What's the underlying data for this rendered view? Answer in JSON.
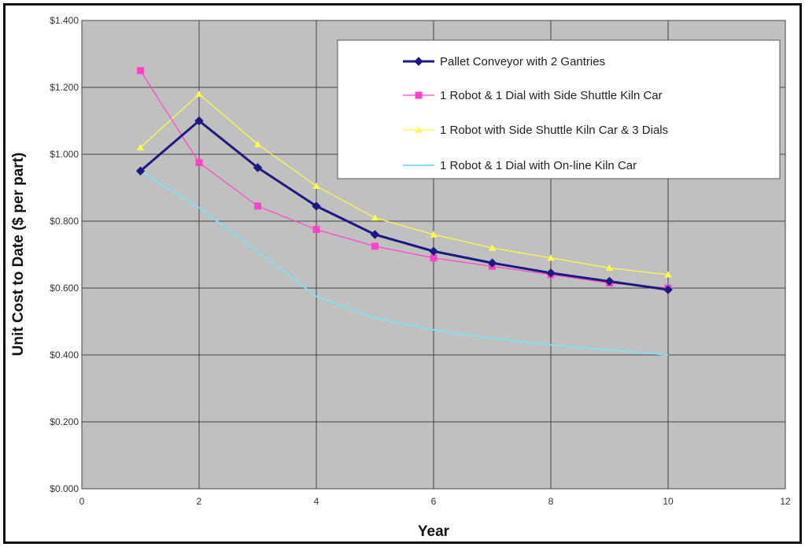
{
  "chart_data": {
    "type": "line",
    "title": "",
    "xlabel": "Year",
    "ylabel": "Unit Cost to Date ($ per part)",
    "xlim": [
      0,
      12
    ],
    "ylim": [
      0,
      1.4
    ],
    "x_ticks": [
      0,
      2,
      4,
      6,
      8,
      10,
      12
    ],
    "x_tick_labels": [
      "0",
      "2",
      "4",
      "6",
      "8",
      "10",
      "12"
    ],
    "y_ticks": [
      0,
      0.2,
      0.4,
      0.6,
      0.8,
      1.0,
      1.2,
      1.4
    ],
    "y_tick_labels": [
      "$0.000",
      "$0.200",
      "$0.400",
      "$0.600",
      "$0.800",
      "$1.000",
      "$1.200",
      "$1.400"
    ],
    "grid": true,
    "legend_position": "top-right",
    "plot_background": "#c0c0c0",
    "series": [
      {
        "name": "Pallet Conveyor with 2 Gantries",
        "color": "#1a1a80",
        "marker": "diamond",
        "line_width": 3,
        "x": [
          1,
          2,
          3,
          4,
          5,
          6,
          7,
          8,
          9,
          10
        ],
        "values": [
          0.95,
          1.1,
          0.96,
          0.845,
          0.76,
          0.71,
          0.675,
          0.645,
          0.62,
          0.595
        ]
      },
      {
        "name": "1 Robot & 1 Dial with Side Shuttle Kiln Car",
        "color": "#ff44cc",
        "marker": "square",
        "line_width": 1.2,
        "x": [
          1,
          2,
          3,
          4,
          5,
          6,
          7,
          8,
          9,
          10
        ],
        "values": [
          1.25,
          0.975,
          0.845,
          0.775,
          0.725,
          0.69,
          0.665,
          0.64,
          0.615,
          0.6
        ]
      },
      {
        "name": "1 Robot with Side Shuttle Kiln Car & 3 Dials",
        "color": "#ffff44",
        "marker": "triangle",
        "line_width": 1.2,
        "x": [
          1,
          2,
          3,
          4,
          5,
          6,
          7,
          8,
          9,
          10
        ],
        "values": [
          1.02,
          1.18,
          1.03,
          0.905,
          0.81,
          0.76,
          0.72,
          0.69,
          0.66,
          0.64
        ]
      },
      {
        "name": "1 Robot & 1 Dial with On-line Kiln Car",
        "color": "#88ddee",
        "marker": "none",
        "line_width": 2,
        "x": [
          1,
          2,
          3,
          4,
          5,
          6,
          7,
          8,
          9,
          10
        ],
        "values": [
          0.95,
          0.84,
          0.71,
          0.575,
          0.51,
          0.475,
          0.45,
          0.43,
          0.415,
          0.4
        ]
      }
    ]
  }
}
